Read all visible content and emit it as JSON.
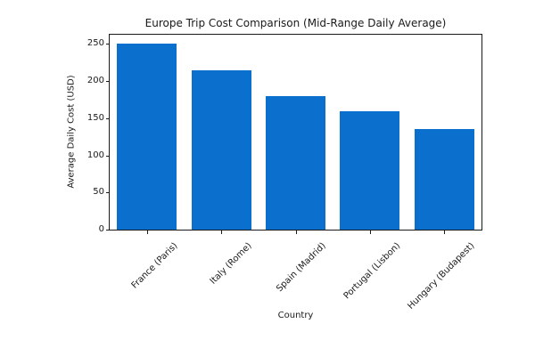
{
  "chart_data": {
    "type": "bar",
    "title": "Europe Trip Cost Comparison (Mid-Range Daily Average)",
    "xlabel": "Country",
    "ylabel": "Average Daily Cost (USD)",
    "categories": [
      "France (Paris)",
      "Italy (Rome)",
      "Spain (Madrid)",
      "Portugal (Lisbon)",
      "Hungary (Budapest)"
    ],
    "values": [
      250,
      215,
      180,
      160,
      135
    ],
    "yticks": [
      0,
      50,
      100,
      150,
      200,
      250
    ],
    "ylim": [
      0,
      262.5
    ],
    "grid": false,
    "legend": null,
    "colors": {
      "bar": "#0b6fce",
      "axis": "#1a1a1a",
      "text": "#1a1a1a",
      "background": "#ffffff"
    }
  }
}
